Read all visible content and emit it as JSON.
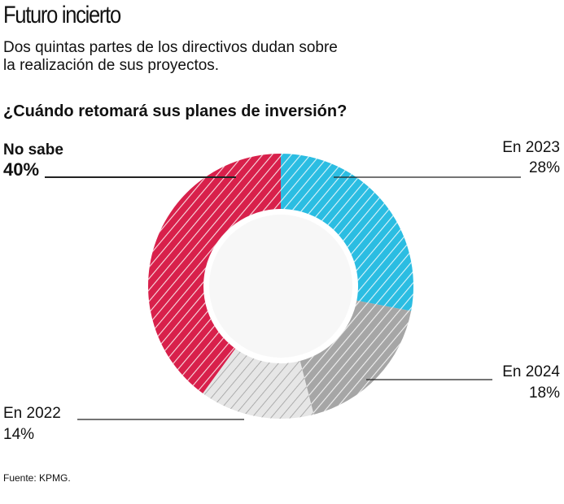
{
  "chart_data": {
    "type": "donut",
    "title": "Futuro incierto",
    "subtitle": "Dos quintas partes de los directivos dudan sobre la realización de sus proyectos.",
    "question": "¿Cuándo retomará sus planes de inversión?",
    "categories": [
      "En 2023",
      "En 2024",
      "En 2022",
      "No sabe"
    ],
    "values": [
      28,
      18,
      14,
      40
    ],
    "value_labels": [
      "28%",
      "18%",
      "14%",
      "40%"
    ],
    "colors": [
      "#2bbde2",
      "#a6a6a6",
      "#e6e6e6",
      "#d8204b"
    ],
    "source": "Fuente: KPMG."
  }
}
